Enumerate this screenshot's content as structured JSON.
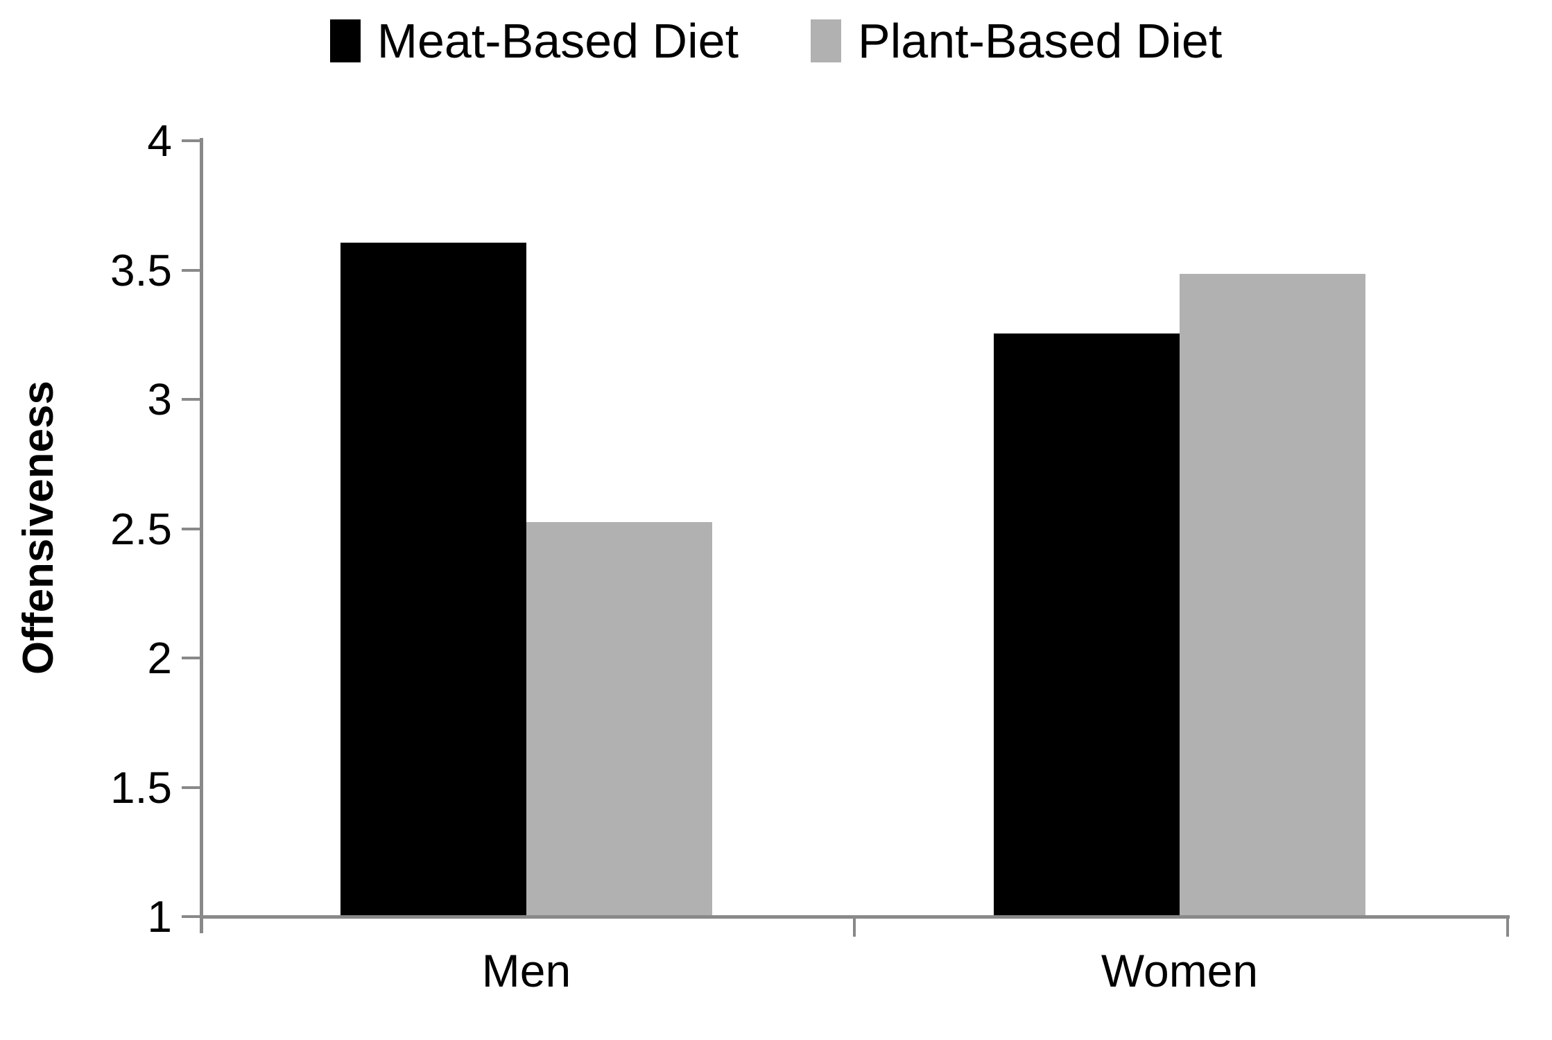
{
  "chart_data": {
    "type": "bar",
    "title": "",
    "categories": [
      "Men",
      "Women"
    ],
    "series": [
      {
        "name": "Meat-Based Diet",
        "color": "#000000",
        "values": [
          3.6,
          3.25
        ]
      },
      {
        "name": "Plant-Based Diet",
        "color": "#B1B1B1",
        "values": [
          2.52,
          3.48
        ]
      }
    ],
    "xlabel": "",
    "ylabel": "Offensiveness",
    "ylim": [
      1,
      4
    ],
    "yticks": [
      1,
      1.5,
      2,
      2.5,
      3,
      3.5,
      4
    ],
    "grid": false,
    "legend_position": "top",
    "bar_value_labels": false,
    "colors": {
      "axis": "#898989",
      "text": "#000000",
      "background": "#FFFFFF"
    }
  }
}
